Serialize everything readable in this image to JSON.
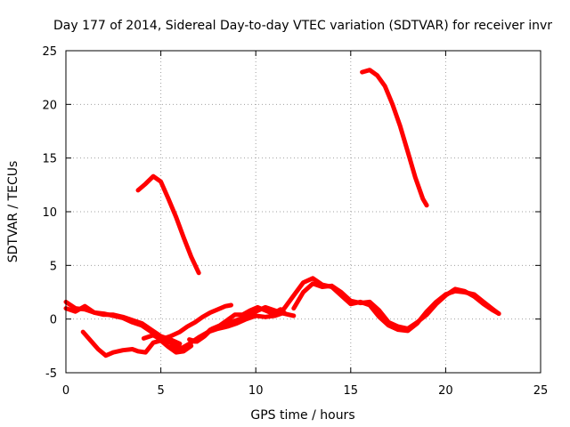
{
  "chart_data": {
    "type": "line",
    "title": "Day 177 of 2014, Sidereal Day-to-day VTEC variation (SDTVAR) for receiver invr",
    "xlabel": "GPS time / hours",
    "ylabel": "SDTVAR / TECUs",
    "xlim": [
      0,
      25
    ],
    "ylim": [
      -5,
      25
    ],
    "xticks": [
      0,
      5,
      10,
      15,
      20,
      25
    ],
    "yticks": [
      -5,
      0,
      5,
      10,
      15,
      20,
      25
    ],
    "grid": true,
    "legend": "none",
    "color": "#ff0000",
    "series": [
      {
        "name": "arc-1",
        "x": [
          0,
          0.5,
          1,
          1.5,
          2,
          2.5,
          3,
          3.5,
          4,
          4.5,
          5,
          5.5,
          6
        ],
        "y": [
          1.6,
          1.0,
          0.9,
          0.6,
          0.4,
          0.4,
          0.2,
          -0.1,
          -0.4,
          -1.0,
          -1.6,
          -1.9,
          -2.3
        ]
      },
      {
        "name": "arc-2",
        "x": [
          0,
          0.5,
          1,
          1.5,
          2,
          2.5,
          3,
          3.5,
          4,
          4.5,
          5,
          5.5,
          6
        ],
        "y": [
          1.0,
          0.7,
          1.2,
          0.6,
          0.5,
          0.3,
          0.1,
          -0.3,
          -0.6,
          -1.2,
          -1.8,
          -2.2,
          -2.6
        ]
      },
      {
        "name": "arc-3",
        "x": [
          0.9,
          1.3,
          1.7,
          2.1,
          2.5,
          3.0,
          3.5,
          3.8,
          4.2,
          4.6,
          5.0,
          5.4,
          5.8,
          6.2,
          6.6
        ],
        "y": [
          -1.2,
          -2.0,
          -2.8,
          -3.4,
          -3.1,
          -2.9,
          -2.8,
          -3.0,
          -3.1,
          -2.2,
          -2.0,
          -2.6,
          -3.1,
          -3.0,
          -2.5
        ]
      },
      {
        "name": "arc-4",
        "x": [
          3.8,
          4.2,
          4.6,
          5.0,
          5.4,
          5.8,
          6.2,
          6.6,
          7.0
        ],
        "y": [
          12.0,
          12.6,
          13.3,
          12.8,
          11.2,
          9.5,
          7.6,
          5.8,
          4.3
        ]
      },
      {
        "name": "arc-5",
        "x": [
          4.1,
          4.6,
          5.0,
          5.5,
          6.0,
          6.4,
          6.8,
          7.2,
          7.6,
          8.0,
          8.4,
          8.7
        ],
        "y": [
          -1.8,
          -1.5,
          -1.9,
          -1.6,
          -1.2,
          -0.7,
          -0.3,
          0.2,
          0.6,
          0.9,
          1.2,
          1.3
        ]
      },
      {
        "name": "arc-6",
        "x": [
          5.5,
          6.0,
          6.5,
          7.0,
          7.5,
          8.0,
          8.5,
          9.0,
          9.5,
          10.0,
          10.5,
          11.0,
          11.5
        ],
        "y": [
          -2.6,
          -2.8,
          -2.3,
          -1.7,
          -1.2,
          -0.9,
          -0.7,
          -0.4,
          0.0,
          0.3,
          0.2,
          0.3,
          0.6
        ]
      },
      {
        "name": "arc-7",
        "x": [
          6.8,
          7.2,
          7.6,
          8.0,
          8.5,
          9.0,
          9.5,
          10.0,
          10.5,
          11.0,
          11.5,
          12.0
        ],
        "y": [
          -2.1,
          -1.7,
          -1.0,
          -0.7,
          -0.4,
          -0.1,
          0.2,
          0.7,
          1.1,
          0.8,
          0.5,
          0.3
        ]
      },
      {
        "name": "arc-8",
        "x": [
          6.5,
          6.9,
          7.3,
          7.7,
          8.1,
          8.5,
          8.9,
          9.3,
          9.7,
          10.1,
          10.5,
          10.9,
          11.3
        ],
        "y": [
          -1.9,
          -2.1,
          -1.6,
          -0.9,
          -0.6,
          -0.1,
          0.4,
          0.4,
          0.8,
          1.1,
          0.8,
          0.5,
          0.9
        ]
      },
      {
        "name": "arc-9",
        "x": [
          11.0,
          11.5,
          12.0,
          12.5,
          13.0,
          13.5,
          14.0,
          14.5,
          15.0,
          15.5,
          16.0,
          16.5,
          17.0,
          17.5,
          18.0,
          18.5,
          19.0,
          19.5,
          20.0,
          20.5,
          21.0,
          21.5,
          22.0,
          22.5,
          22.8
        ],
        "y": [
          0.3,
          1.0,
          2.2,
          3.4,
          3.8,
          3.2,
          3.0,
          2.2,
          1.4,
          1.6,
          1.3,
          0.2,
          -0.6,
          -1.0,
          -1.1,
          -0.4,
          0.7,
          1.6,
          2.3,
          2.6,
          2.5,
          2.3,
          1.6,
          0.9,
          0.5
        ]
      },
      {
        "name": "arc-10",
        "x": [
          12.0,
          12.5,
          13.0,
          13.5,
          14.0,
          14.5,
          15.0,
          15.5,
          16.0,
          16.5,
          17.0,
          17.5,
          18.0,
          18.5,
          19.0,
          19.5,
          20.0,
          20.5,
          21.0,
          21.5,
          22.0,
          22.5,
          22.8
        ],
        "y": [
          1.0,
          2.5,
          3.3,
          3.0,
          3.1,
          2.5,
          1.7,
          1.5,
          1.6,
          0.8,
          -0.3,
          -0.7,
          -0.9,
          -0.3,
          0.4,
          1.4,
          2.2,
          2.8,
          2.6,
          2.1,
          1.4,
          0.8,
          0.5
        ]
      },
      {
        "name": "arc-11",
        "x": [
          15.6,
          16.0,
          16.4,
          16.8,
          17.2,
          17.6,
          18.0,
          18.4,
          18.8,
          19.0
        ],
        "y": [
          23.0,
          23.2,
          22.7,
          21.7,
          20.0,
          18.0,
          15.6,
          13.2,
          11.2,
          10.6
        ]
      }
    ]
  }
}
